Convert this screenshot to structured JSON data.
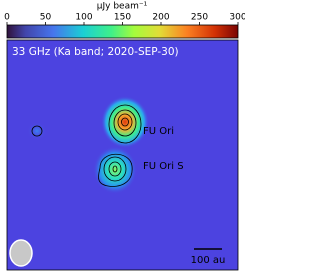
{
  "colorbar": {
    "label": "μJy beam⁻¹",
    "lim": [
      0,
      300
    ],
    "ticks": [
      0,
      50,
      100,
      150,
      200,
      250,
      300
    ]
  },
  "panel": {
    "title": "33 GHz (Ka band; 2020-SEP-30)",
    "sources": [
      "FU Ori",
      "FU Ori S"
    ],
    "scalebar": "100 au"
  }
}
